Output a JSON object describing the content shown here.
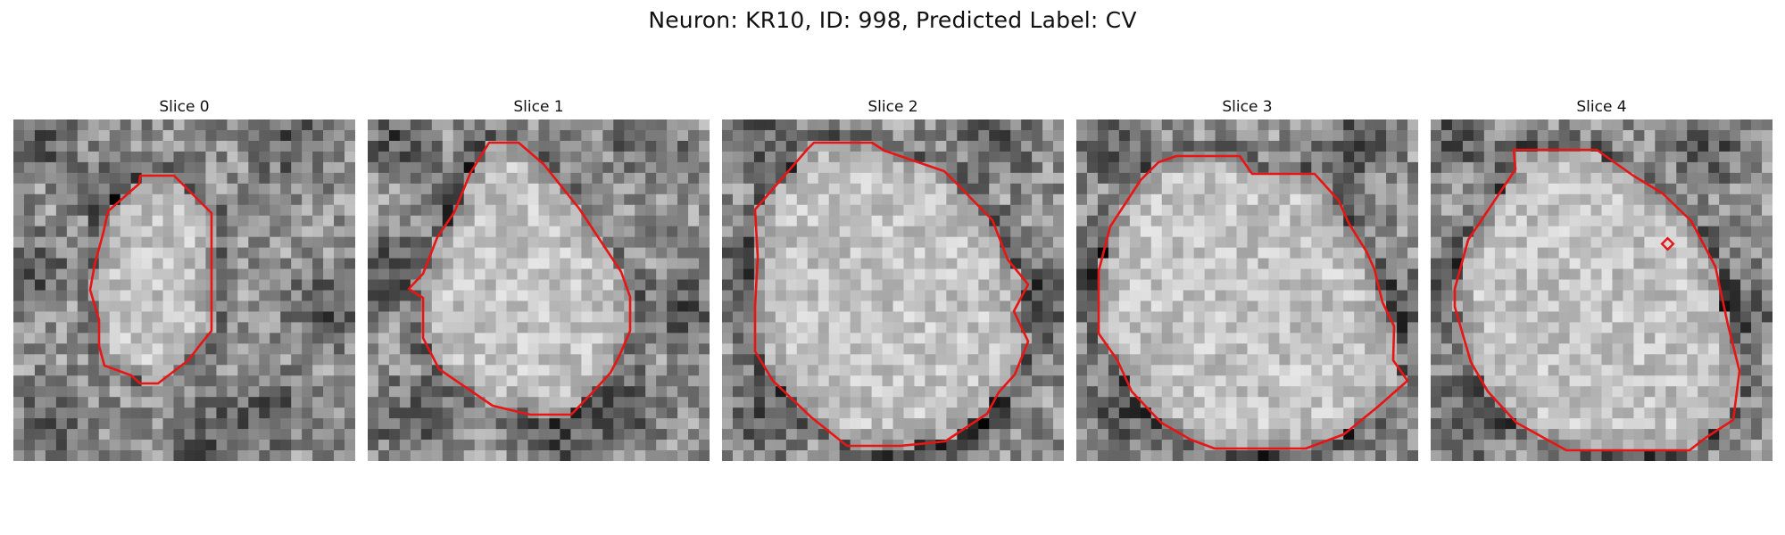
{
  "figure": {
    "title": "Neuron: KR10, ID: 998, Predicted Label: CV",
    "contour_color": "#e81515"
  },
  "panels": [
    {
      "title": "Slice 0"
    },
    {
      "title": "Slice 1"
    },
    {
      "title": "Slice 2"
    },
    {
      "title": "Slice 3"
    },
    {
      "title": "Slice 4"
    }
  ]
}
